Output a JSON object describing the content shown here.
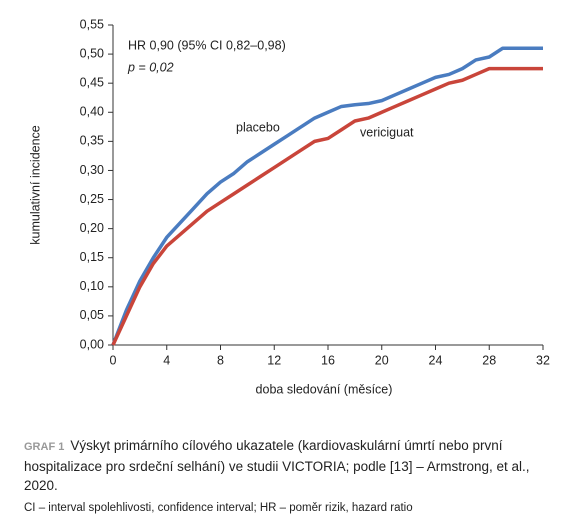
{
  "chart_data": {
    "type": "line",
    "annotations": [
      "HR 0,90 (95% CI 0,82–0,98)",
      "p = 0,02"
    ],
    "x_label": "doba sledování (měsíce)",
    "y_label": "kumulativní incidence",
    "x": [
      0,
      0.5,
      1,
      2,
      3,
      4,
      5,
      6,
      7,
      8,
      9,
      10,
      11,
      12,
      13,
      14,
      15,
      16,
      17,
      18,
      19,
      20,
      21,
      22,
      23,
      24,
      25,
      26,
      27,
      28,
      29,
      30,
      31,
      32
    ],
    "series": [
      {
        "name": "placebo",
        "color": "#4a7cc0",
        "values": [
          0,
          0.03,
          0.06,
          0.11,
          0.15,
          0.185,
          0.21,
          0.235,
          0.26,
          0.28,
          0.295,
          0.315,
          0.33,
          0.345,
          0.36,
          0.375,
          0.39,
          0.4,
          0.41,
          0.413,
          0.415,
          0.42,
          0.43,
          0.44,
          0.45,
          0.46,
          0.465,
          0.475,
          0.49,
          0.495,
          0.51,
          0.51,
          0.51,
          0.51
        ]
      },
      {
        "name": "vericiguat",
        "color": "#c9453a",
        "values": [
          0,
          0.025,
          0.05,
          0.1,
          0.14,
          0.17,
          0.19,
          0.21,
          0.23,
          0.245,
          0.26,
          0.275,
          0.29,
          0.305,
          0.32,
          0.335,
          0.35,
          0.355,
          0.37,
          0.385,
          0.39,
          0.4,
          0.41,
          0.42,
          0.43,
          0.44,
          0.45,
          0.455,
          0.465,
          0.475,
          0.475,
          0.475,
          0.475,
          0.475
        ]
      }
    ],
    "xlim": [
      0,
      32
    ],
    "xticks": [
      0,
      4,
      8,
      12,
      16,
      20,
      24,
      28,
      32
    ],
    "ylim": [
      0,
      0.55
    ],
    "yticks": [
      {
        "value": 0,
        "label": "0,00"
      },
      {
        "value": 0.05,
        "label": "0,05"
      },
      {
        "value": 0.1,
        "label": "0,10"
      },
      {
        "value": 0.15,
        "label": "0,15"
      },
      {
        "value": 0.2,
        "label": "0,20"
      },
      {
        "value": 0.25,
        "label": "0,25"
      },
      {
        "value": 0.3,
        "label": "0,30"
      },
      {
        "value": 0.35,
        "label": "0,35"
      },
      {
        "value": 0.4,
        "label": "0,40"
      },
      {
        "value": 0.45,
        "label": "0,45"
      },
      {
        "value": 0.5,
        "label": "0,50"
      },
      {
        "value": 0.55,
        "label": "0,55"
      }
    ],
    "grid": false
  },
  "caption": {
    "label": "GRAF 1",
    "text": "Výskyt primárního cílového ukazatele (kardiovaskulární úmrtí nebo první hospitalizace pro srdeční selhání) ve studii VICTORIA; podle [13] – Armstrong, et al., 2020.",
    "note": "CI – interval spolehlivosti, confidence interval; HR – poměr rizik, hazard ratio"
  }
}
